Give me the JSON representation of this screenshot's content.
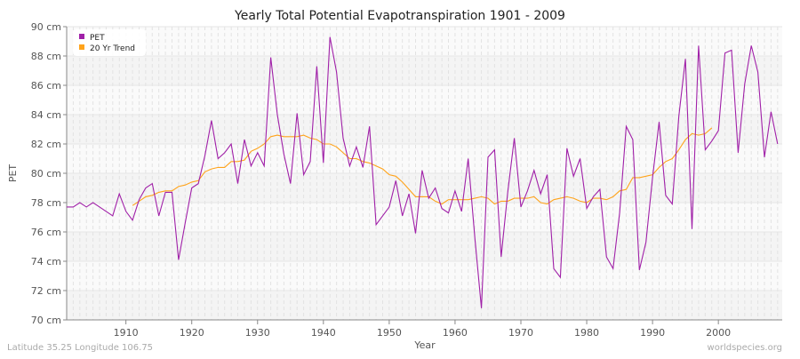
{
  "chart_data": {
    "type": "line",
    "title": "Yearly Total Potential Evapotranspiration 1901 - 2009",
    "xlabel": "Year",
    "ylabel": "PET",
    "xlim": [
      1901,
      2009.7
    ],
    "ylim": [
      70,
      90
    ],
    "x_ticks": [
      1910,
      1920,
      1930,
      1940,
      1950,
      1960,
      1970,
      1980,
      1990,
      2000
    ],
    "y_ticks": [
      70,
      72,
      74,
      76,
      78,
      80,
      82,
      84,
      86,
      88,
      90
    ],
    "y_tick_labels": [
      "70 cm",
      "72 cm",
      "74 cm",
      "76 cm",
      "78 cm",
      "80 cm",
      "82 cm",
      "84 cm",
      "86 cm",
      "88 cm",
      "90 cm"
    ],
    "grid": true,
    "legend_placement": "top-left",
    "colors": {
      "PET": "#a020a8",
      "20 Yr Trend": "#ffa31a"
    },
    "series": [
      {
        "name": "PET",
        "x_start": 1901,
        "values": [
          77.7,
          77.7,
          78.0,
          77.7,
          78.0,
          77.7,
          77.4,
          77.1,
          78.6,
          77.4,
          76.8,
          78.2,
          79.0,
          79.3,
          77.1,
          78.7,
          78.7,
          74.1,
          76.6,
          79.0,
          79.3,
          81.2,
          83.6,
          81.0,
          81.4,
          82.0,
          79.3,
          82.3,
          80.5,
          81.4,
          80.5,
          87.9,
          84.0,
          81.3,
          79.3,
          84.1,
          79.9,
          80.8,
          87.3,
          80.7,
          89.3,
          86.9,
          82.4,
          80.5,
          81.8,
          80.4,
          83.2,
          76.5,
          77.1,
          77.7,
          79.5,
          77.1,
          78.6,
          75.9,
          80.2,
          78.3,
          79.0,
          77.6,
          77.3,
          78.8,
          77.4,
          81.0,
          75.6,
          70.8,
          81.1,
          81.6,
          74.3,
          78.7,
          82.4,
          77.7,
          78.8,
          80.2,
          78.6,
          79.9,
          73.5,
          72.9,
          81.7,
          79.8,
          81.0,
          77.6,
          78.4,
          78.9,
          74.3,
          73.5,
          77.3,
          83.2,
          82.3,
          73.4,
          75.3,
          79.7,
          83.5,
          78.5,
          77.9,
          83.9,
          87.8,
          76.2,
          88.7,
          81.6,
          82.2,
          82.9,
          88.2,
          88.4,
          81.4,
          86.1,
          88.7,
          86.9,
          81.1,
          84.2,
          82.0
        ]
      },
      {
        "name": "20 Yr Trend",
        "x_start": 1911,
        "values": [
          77.8,
          78.1,
          78.4,
          78.5,
          78.7,
          78.8,
          78.8,
          79.1,
          79.2,
          79.4,
          79.5,
          80.1,
          80.3,
          80.4,
          80.4,
          80.8,
          80.8,
          80.9,
          81.5,
          81.7,
          82.0,
          82.5,
          82.6,
          82.5,
          82.5,
          82.5,
          82.6,
          82.4,
          82.3,
          82.0,
          82.0,
          81.8,
          81.4,
          81.0,
          81.0,
          80.8,
          80.7,
          80.5,
          80.3,
          79.9,
          79.8,
          79.4,
          78.9,
          78.4,
          78.4,
          78.4,
          78.1,
          77.9,
          78.2,
          78.2,
          78.2,
          78.2,
          78.3,
          78.4,
          78.3,
          77.9,
          78.1,
          78.1,
          78.3,
          78.3,
          78.3,
          78.4,
          78.0,
          77.9,
          78.2,
          78.3,
          78.4,
          78.3,
          78.1,
          78.0,
          78.3,
          78.3,
          78.2,
          78.4,
          78.8,
          78.9,
          79.7,
          79.7,
          79.8,
          79.9,
          80.4,
          80.8,
          81.0,
          81.6,
          82.3,
          82.7,
          82.6,
          82.7,
          83.1
        ]
      }
    ]
  },
  "footer": {
    "location": "Latitude 35.25 Longitude 106.75",
    "source": "worldspecies.org"
  }
}
